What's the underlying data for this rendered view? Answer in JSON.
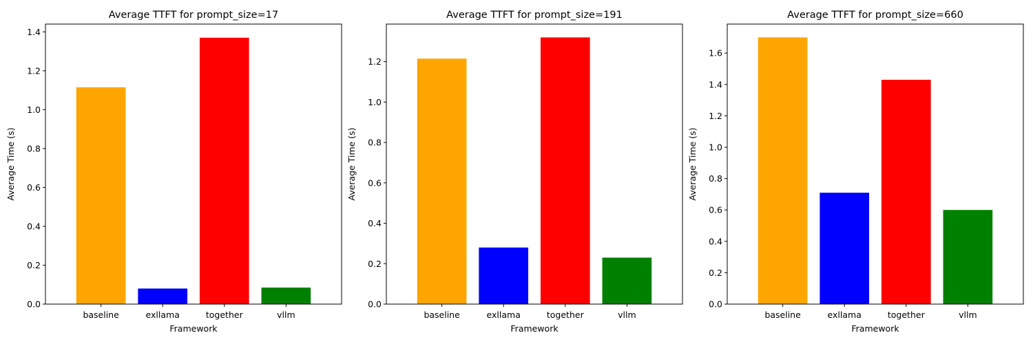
{
  "colors": {
    "baseline": "#ffa500",
    "exllama": "#0000ff",
    "together": "#ff0000",
    "vllm": "#008000"
  },
  "chart_data": [
    {
      "type": "bar",
      "title": "Average TTFT for prompt_size=17",
      "xlabel": "Framework",
      "ylabel": "Average Time (s)",
      "categories": [
        "baseline",
        "exllama",
        "together",
        "vllm"
      ],
      "values": [
        1.115,
        0.08,
        1.37,
        0.085
      ],
      "ylim": [
        0,
        1.44
      ],
      "yticks": [
        0.0,
        0.2,
        0.4,
        0.6,
        0.8,
        1.0,
        1.2,
        1.4
      ],
      "ytick_labels": [
        "0.0",
        "0.2",
        "0.4",
        "0.6",
        "0.8",
        "1.0",
        "1.2",
        "1.4"
      ]
    },
    {
      "type": "bar",
      "title": "Average TTFT for prompt_size=191",
      "xlabel": "Framework",
      "ylabel": "Average Time (s)",
      "categories": [
        "baseline",
        "exllama",
        "together",
        "vllm"
      ],
      "values": [
        1.215,
        0.28,
        1.32,
        0.23
      ],
      "ylim": [
        0,
        1.386
      ],
      "yticks": [
        0.0,
        0.2,
        0.4,
        0.6,
        0.8,
        1.0,
        1.2
      ],
      "ytick_labels": [
        "0.0",
        "0.2",
        "0.4",
        "0.6",
        "0.8",
        "1.0",
        "1.2"
      ]
    },
    {
      "type": "bar",
      "title": "Average TTFT for prompt_size=660",
      "xlabel": "Framework",
      "ylabel": "Average Time (s)",
      "categories": [
        "baseline",
        "exllama",
        "together",
        "vllm"
      ],
      "values": [
        1.7,
        0.71,
        1.43,
        0.6
      ],
      "ylim": [
        0,
        1.785
      ],
      "yticks": [
        0.0,
        0.2,
        0.4,
        0.6,
        0.8,
        1.0,
        1.2,
        1.4,
        1.6
      ],
      "ytick_labels": [
        "0.0",
        "0.2",
        "0.4",
        "0.6",
        "0.8",
        "1.0",
        "1.2",
        "1.4",
        "1.6"
      ]
    }
  ]
}
